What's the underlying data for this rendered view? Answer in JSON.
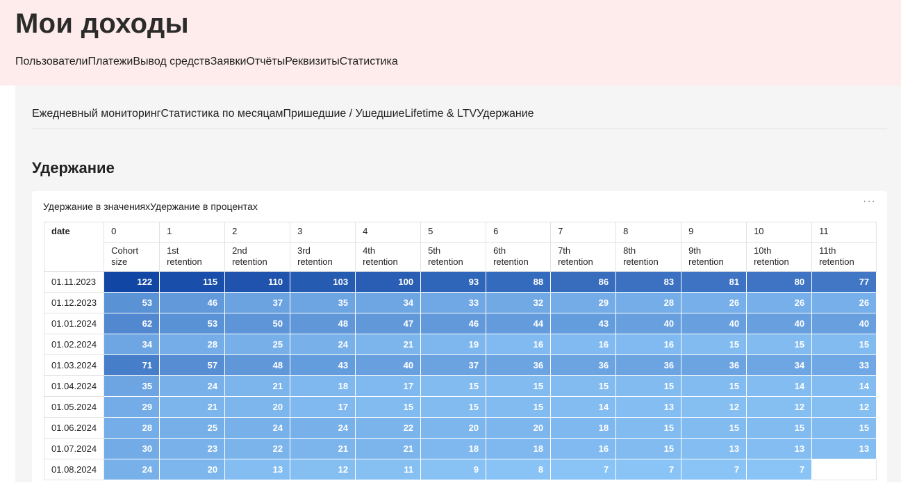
{
  "header": {
    "title": "Мои доходы",
    "tabs": [
      "Пользователи",
      "Платежи",
      "Вывод средств",
      "Заявки",
      "Отчёты",
      "Реквизиты",
      "Статистика"
    ],
    "active_tab": 6
  },
  "subtabs": {
    "items": [
      "Ежедневный мониторинг",
      "Статистика по месяцам",
      "Пришедшие / Ушедшие",
      "Lifetime & LTV",
      "Удержание"
    ],
    "active": 4
  },
  "section": {
    "title": "Удержание",
    "card_tabs": [
      "Удержание в значениях",
      "Удержание в процентах"
    ],
    "active_card_tab": 0,
    "menu": "···"
  },
  "table": {
    "date_header": "date",
    "columns": [
      {
        "index": "0",
        "label": "Cohort size"
      },
      {
        "index": "1",
        "label": "1st retention"
      },
      {
        "index": "2",
        "label": "2nd retention"
      },
      {
        "index": "3",
        "label": "3rd retention"
      },
      {
        "index": "4",
        "label": "4th retention"
      },
      {
        "index": "5",
        "label": "5th retention"
      },
      {
        "index": "6",
        "label": "6th retention"
      },
      {
        "index": "7",
        "label": "7th retention"
      },
      {
        "index": "8",
        "label": "8th retention"
      },
      {
        "index": "9",
        "label": "9th retention"
      },
      {
        "index": "10",
        "label": "10th retention"
      },
      {
        "index": "11",
        "label": "11th retention"
      }
    ],
    "rows": [
      {
        "date": "01.11.2023",
        "values": [
          122,
          115,
          110,
          103,
          100,
          93,
          88,
          86,
          83,
          81,
          80,
          77
        ]
      },
      {
        "date": "01.12.2023",
        "values": [
          53,
          46,
          37,
          35,
          34,
          33,
          32,
          29,
          28,
          26,
          26,
          26
        ]
      },
      {
        "date": "01.01.2024",
        "values": [
          62,
          53,
          50,
          48,
          47,
          46,
          44,
          43,
          40,
          40,
          40,
          40
        ]
      },
      {
        "date": "01.02.2024",
        "values": [
          34,
          28,
          25,
          24,
          21,
          19,
          16,
          16,
          16,
          15,
          15,
          15
        ]
      },
      {
        "date": "01.03.2024",
        "values": [
          71,
          57,
          48,
          43,
          40,
          37,
          36,
          36,
          36,
          36,
          34,
          33
        ]
      },
      {
        "date": "01.04.2024",
        "values": [
          35,
          24,
          21,
          18,
          17,
          15,
          15,
          15,
          15,
          15,
          14,
          14
        ]
      },
      {
        "date": "01.05.2024",
        "values": [
          29,
          21,
          20,
          17,
          15,
          15,
          15,
          14,
          13,
          12,
          12,
          12
        ]
      },
      {
        "date": "01.06.2024",
        "values": [
          28,
          25,
          24,
          24,
          22,
          20,
          20,
          18,
          15,
          15,
          15,
          15
        ]
      },
      {
        "date": "01.07.2024",
        "values": [
          30,
          23,
          22,
          21,
          21,
          18,
          18,
          16,
          15,
          13,
          13,
          13
        ]
      },
      {
        "date": "01.08.2024",
        "values": [
          24,
          20,
          13,
          12,
          11,
          9,
          8,
          7,
          7,
          7,
          7,
          null
        ]
      }
    ]
  }
}
